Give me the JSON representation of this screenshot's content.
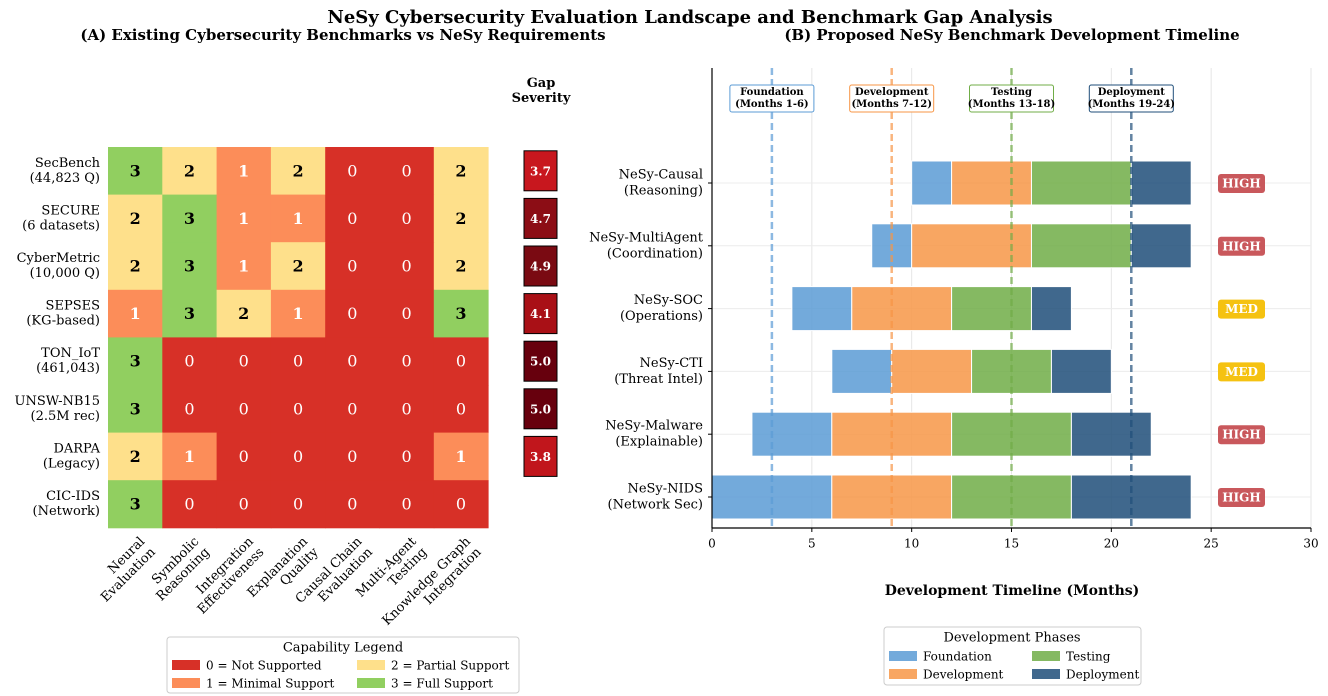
{
  "title": "NeSy Cybersecurity Evaluation Landscape and Benchmark Gap Analysis",
  "chart_data": [
    {
      "type": "heatmap",
      "title": "(A) Existing Cybersecurity Benchmarks vs NeSy Requirements",
      "rows": [
        [
          "SecBench",
          "(44,823 Q)"
        ],
        [
          "SECURE",
          "(6 datasets)"
        ],
        [
          "CyberMetric",
          "(10,000 Q)"
        ],
        [
          "SEPSES",
          "(KG-based)"
        ],
        [
          "TON_IoT",
          "(461,043)"
        ],
        [
          "UNSW-NB15",
          "(2.5M rec)"
        ],
        [
          "DARPA",
          "(Legacy)"
        ],
        [
          "CIC-IDS",
          "(Network)"
        ]
      ],
      "columns": [
        [
          "Neural",
          "Evaluation"
        ],
        [
          "Symbolic",
          "Reasoning"
        ],
        [
          "Integration",
          "Effectiveness"
        ],
        [
          "Explanation",
          "Quality"
        ],
        [
          "Causal Chain",
          "Evaluation"
        ],
        [
          "Multi-Agent",
          "Testing"
        ],
        [
          "Knowledge Graph",
          "Integration"
        ]
      ],
      "values": [
        [
          3,
          2,
          1,
          2,
          0,
          0,
          2
        ],
        [
          2,
          3,
          1,
          1,
          0,
          0,
          2
        ],
        [
          2,
          3,
          1,
          2,
          0,
          0,
          2
        ],
        [
          1,
          3,
          2,
          1,
          0,
          0,
          3
        ],
        [
          3,
          0,
          0,
          0,
          0,
          0,
          0
        ],
        [
          3,
          0,
          0,
          0,
          0,
          0,
          0
        ],
        [
          2,
          1,
          0,
          0,
          0,
          0,
          1
        ],
        [
          3,
          0,
          0,
          0,
          0,
          0,
          0
        ]
      ],
      "level_colors": [
        "#d73027",
        "#fc8d59",
        "#fee08b",
        "#91cf60"
      ],
      "gap": {
        "title": [
          "Gap",
          "Severity"
        ],
        "values": [
          3.7,
          4.7,
          4.9,
          4.1,
          5,
          5,
          3.8,
          null
        ],
        "value_labels": [
          "3.7",
          "4.7",
          "4.9",
          "4.1",
          "5.0",
          "5.0",
          "3.8",
          null
        ],
        "colors": [
          "#c8171e",
          "#8c0d15",
          "#7a0a12",
          "#a91016",
          "#67000d",
          "#67000d",
          "#c1161c",
          null
        ]
      },
      "legend": {
        "title": "Capability Legend",
        "entries": [
          "0 = Not Supported",
          "1 = Minimal Support",
          "2 = Partial Support",
          "3 = Full Support"
        ]
      }
    },
    {
      "type": "gantt",
      "title": "(B) Proposed NeSy Benchmark Development Timeline",
      "categories": [
        [
          "NeSy-Causal",
          "(Reasoning)"
        ],
        [
          "NeSy-MultiAgent",
          "(Coordination)"
        ],
        [
          "NeSy-SOC",
          "(Operations)"
        ],
        [
          "NeSy-CTI",
          "(Threat Intel)"
        ],
        [
          "NeSy-Malware",
          "(Explainable)"
        ],
        [
          "NeSy-NIDS",
          "(Network Sec)"
        ]
      ],
      "series": [
        {
          "name": "Foundation",
          "color": "#5b9bd5",
          "start": [
            10,
            8,
            4,
            6,
            2,
            0
          ],
          "end": [
            12,
            10,
            7,
            9,
            6,
            6
          ]
        },
        {
          "name": "Development",
          "color": "#f79646",
          "start": [
            12,
            10,
            7,
            9,
            6,
            6
          ],
          "end": [
            16,
            16,
            12,
            13,
            12,
            12
          ]
        },
        {
          "name": "Testing",
          "color": "#70ad47",
          "start": [
            16,
            16,
            12,
            13,
            12,
            12
          ],
          "end": [
            21,
            21,
            16,
            17,
            18,
            18
          ]
        },
        {
          "name": "Deployment",
          "color": "#1f4e79",
          "start": [
            21,
            21,
            16,
            17,
            18,
            18
          ],
          "end": [
            24,
            24,
            18,
            20,
            22,
            24
          ]
        }
      ],
      "priority": {
        "labels": [
          "HIGH",
          "HIGH",
          "MED",
          "MED",
          "HIGH",
          "HIGH"
        ],
        "colors": [
          "#c9585c",
          "#c9585c",
          "#f5c211",
          "#f5c211",
          "#c9585c",
          "#c9585c"
        ]
      },
      "phases": [
        {
          "value": 3,
          "label": [
            "Foundation",
            "(Months 1-6)"
          ]
        },
        {
          "value": 9,
          "label": [
            "Development",
            "(Months 7-12)"
          ]
        },
        {
          "value": 15,
          "label": [
            "Testing",
            "(Months 13-18)"
          ]
        },
        {
          "value": 21,
          "label": [
            "Deployment",
            "(Months 19-24)"
          ]
        }
      ],
      "xlim": [
        0,
        30
      ],
      "xticks": [
        0,
        5,
        10,
        15,
        20,
        25,
        30
      ],
      "xlabel": "Development Timeline (Months)",
      "grid": true,
      "legend": {
        "title": "Development Phases"
      }
    }
  ]
}
